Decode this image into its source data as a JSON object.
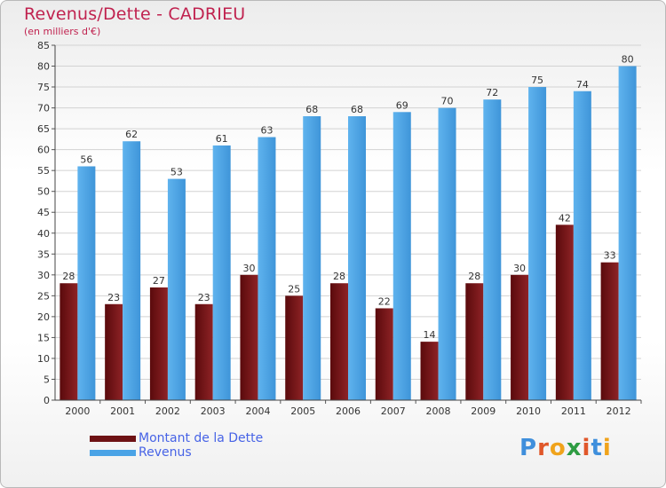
{
  "chart_data": {
    "type": "bar",
    "title": "Revenus/Dette - CADRIEU",
    "subtitle": "(en milliers d'€)",
    "categories": [
      "2000",
      "2001",
      "2002",
      "2003",
      "2004",
      "2005",
      "2006",
      "2007",
      "2008",
      "2009",
      "2010",
      "2011",
      "2012"
    ],
    "series": [
      {
        "name": "Montant de la Dette",
        "color": "#7a1517",
        "values": [
          28,
          23,
          27,
          23,
          30,
          25,
          28,
          22,
          14,
          28,
          30,
          42,
          33
        ]
      },
      {
        "name": "Revenus",
        "color": "#4aa3e6",
        "values": [
          56,
          62,
          53,
          61,
          63,
          68,
          68,
          69,
          70,
          72,
          75,
          74,
          80
        ]
      }
    ],
    "ylim": [
      0,
      85
    ],
    "yticks": [
      0,
      5,
      10,
      15,
      20,
      25,
      30,
      35,
      40,
      45,
      50,
      55,
      60,
      65,
      70,
      75,
      80,
      85
    ],
    "xlabel": "",
    "ylabel": "",
    "grid": true,
    "legend": "bottom-left"
  },
  "logo": {
    "letters": [
      "P",
      "r",
      "o",
      "x",
      "i",
      "t",
      "i"
    ],
    "colors": [
      "#3f8fdc",
      "#e0572a",
      "#f0a31b",
      "#2e9c42",
      "#e0572a",
      "#3f8fdc",
      "#f0a31b"
    ]
  }
}
